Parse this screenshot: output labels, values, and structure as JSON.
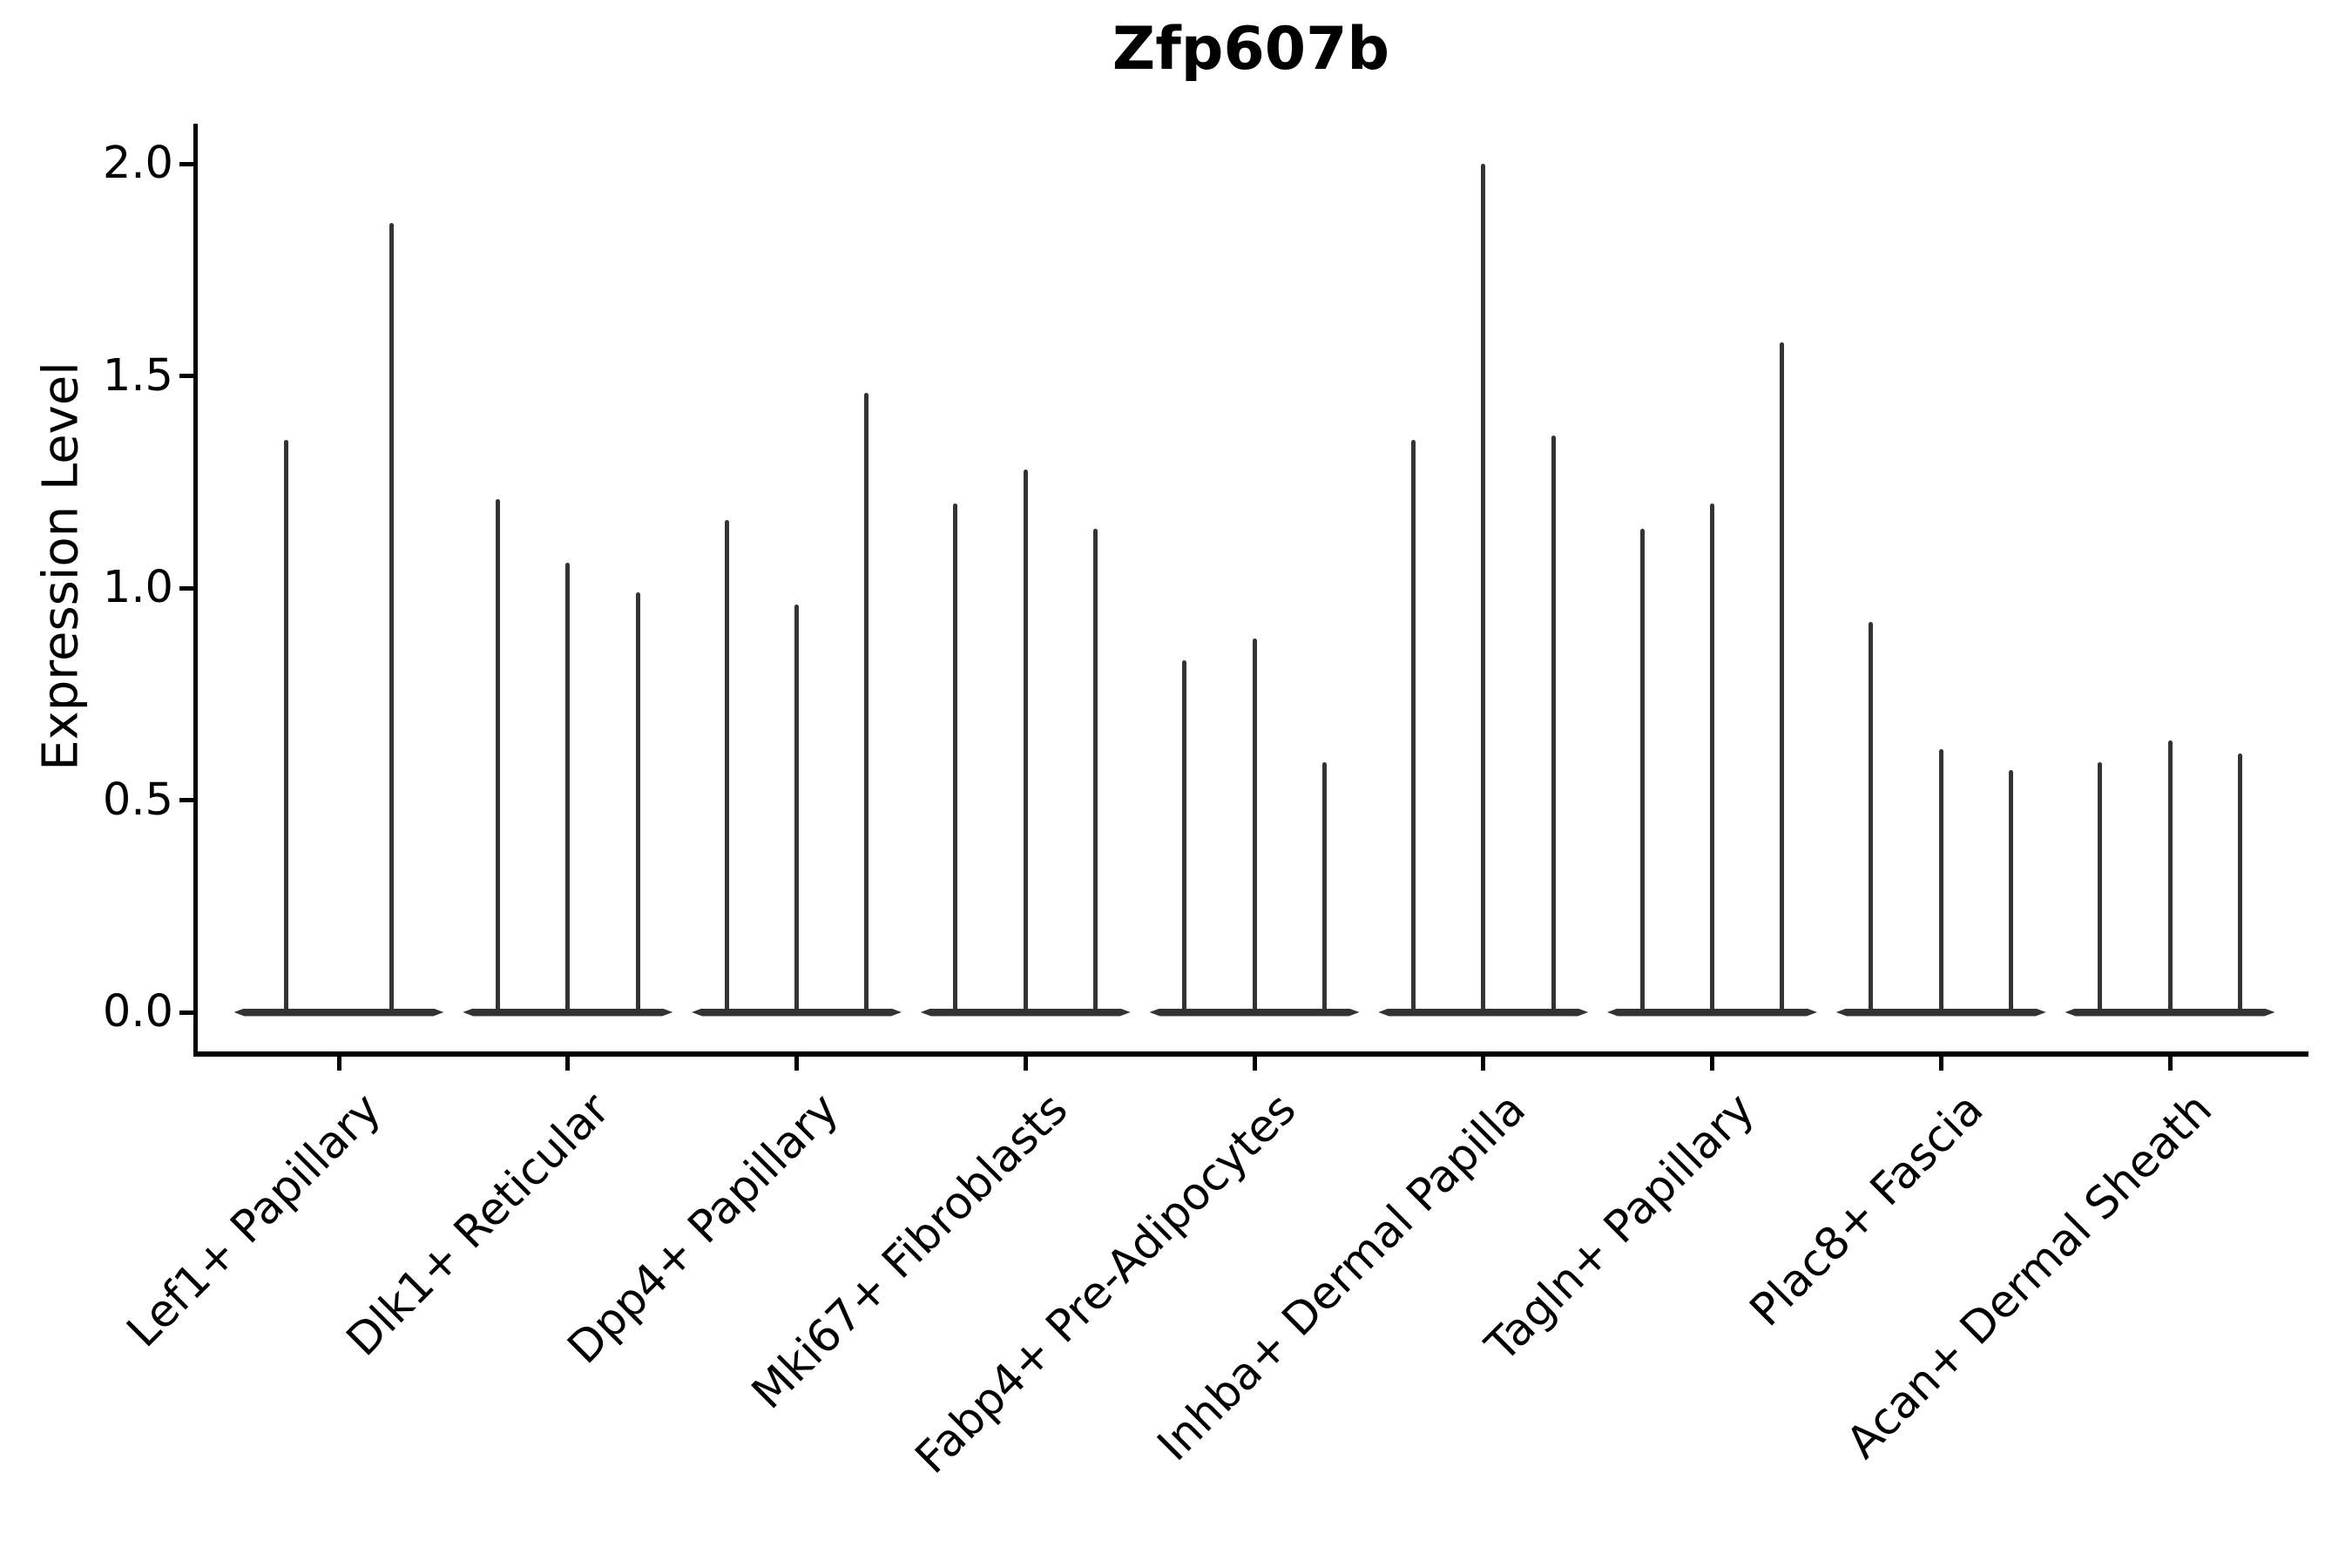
{
  "title": "Zfp607b",
  "y_axis": {
    "label": "Expression Level",
    "tick_labels": [
      "0.0",
      "0.5",
      "1.0",
      "1.5",
      "2.0"
    ]
  },
  "colors": {
    "ink": "#000000",
    "violin": "#333333"
  },
  "chart_data": {
    "type": "violin",
    "title": "Zfp607b",
    "xlabel": "",
    "ylabel": "Expression Level",
    "ylim": [
      0,
      2.05
    ],
    "yticks": [
      0.0,
      0.5,
      1.0,
      1.5,
      2.0
    ],
    "grid": false,
    "legend": false,
    "categories": [
      "Lef1+ Papillary",
      "Dlk1+ Reticular",
      "Dpp4+ Papillary",
      "Mki67+ Fibroblasts",
      "Fabp4+ Pre-Adipocytes",
      "Inhba+ Dermal Papilla",
      "Tagln+ Papillary",
      "Plac8+ Fascia",
      "Acan+ Dermal Sheath"
    ],
    "groups": [
      {
        "category": "Lef1+ Papillary",
        "violin_max_values": [
          1.35,
          1.86
        ]
      },
      {
        "category": "Dlk1+ Reticular",
        "violin_max_values": [
          1.21,
          1.06,
          0.99
        ]
      },
      {
        "category": "Dpp4+ Papillary",
        "violin_max_values": [
          1.16,
          0.96,
          1.46
        ]
      },
      {
        "category": "Mki67+ Fibroblasts",
        "violin_max_values": [
          1.2,
          1.28,
          1.14
        ]
      },
      {
        "category": "Fabp4+ Pre-Adipocytes",
        "violin_max_values": [
          0.83,
          0.88,
          0.59
        ]
      },
      {
        "category": "Inhba+ Dermal Papilla",
        "violin_max_values": [
          1.35,
          2.0,
          1.36
        ]
      },
      {
        "category": "Tagln+ Papillary",
        "violin_max_values": [
          1.14,
          1.2,
          1.58
        ]
      },
      {
        "category": "Plac8+ Fascia",
        "violin_max_values": [
          0.92,
          0.62,
          0.57
        ]
      },
      {
        "category": "Acan+ Dermal Sheath",
        "violin_max_values": [
          0.59,
          0.64,
          0.61
        ]
      }
    ]
  }
}
